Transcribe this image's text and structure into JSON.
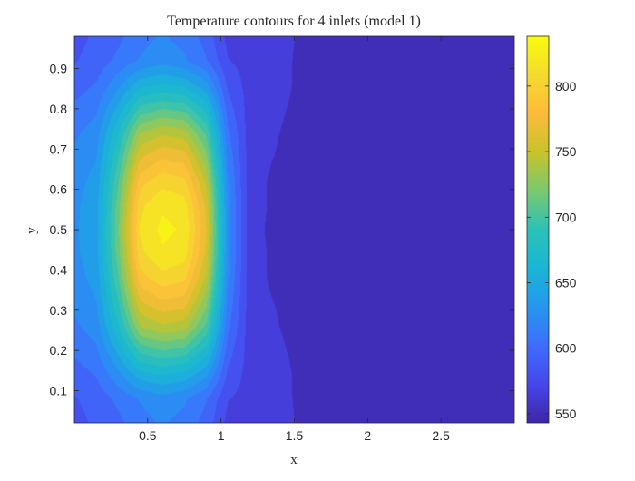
{
  "chart_data": {
    "type": "heatmap",
    "subtype": "filled-contour",
    "title": "Temperature contours for  4 inlets (model 1)",
    "xlabel": "x",
    "ylabel": "y",
    "xlim": [
      0.0,
      3.0
    ],
    "ylim": [
      0.02,
      0.98
    ],
    "x_ticks": [
      0.5,
      1,
      1.5,
      2,
      2.5
    ],
    "x_tick_labels": [
      "0.5",
      "1",
      "1.5",
      "2",
      "2.5"
    ],
    "y_ticks": [
      0.1,
      0.2,
      0.3,
      0.4,
      0.5,
      0.6,
      0.7,
      0.8,
      0.9
    ],
    "y_tick_labels": [
      "0.1",
      "0.2",
      "0.3",
      "0.4",
      "0.5",
      "0.6",
      "0.7",
      "0.8",
      "0.9"
    ],
    "colorbar": {
      "range": [
        543,
        838
      ],
      "ticks": [
        550,
        600,
        650,
        700,
        750,
        800
      ],
      "tick_labels": [
        "550",
        "600",
        "650",
        "700",
        "750",
        "800"
      ],
      "colormap": "parula"
    },
    "colormap_stops": [
      "#3e26a8",
      "#4746eb",
      "#3e6efd",
      "#2597f0",
      "#1ab5d5",
      "#2cc1b8",
      "#7ac971",
      "#c8c32a",
      "#fdbb3b",
      "#f5db2e",
      "#f9fb0e"
    ],
    "contour_levels": 20,
    "field": {
      "x": [
        0.0,
        0.15,
        0.3,
        0.45,
        0.6,
        0.75,
        0.9,
        1.05,
        1.2,
        1.35,
        1.5,
        1.65,
        1.8,
        1.95,
        2.1,
        2.25,
        2.4,
        2.55,
        2.7,
        2.85,
        3.0
      ],
      "y": [
        0.02,
        0.08,
        0.14,
        0.2,
        0.26,
        0.32,
        0.38,
        0.44,
        0.5,
        0.56,
        0.62,
        0.68,
        0.74,
        0.8,
        0.86,
        0.92,
        0.98
      ],
      "T": [
        [
          582,
          590,
          598,
          612,
          618,
          612,
          596,
          567,
          568,
          568,
          558,
          554,
          548,
          545,
          545,
          545,
          545,
          545,
          545,
          545,
          545
        ],
        [
          586,
          593,
          606,
          618,
          625,
          619,
          603,
          573,
          567,
          566,
          557,
          553,
          547,
          545,
          545,
          545,
          545,
          545,
          545,
          545,
          545
        ],
        [
          595,
          603,
          627,
          655,
          662,
          656,
          635,
          583,
          566,
          564,
          557,
          552,
          547,
          545,
          545,
          545,
          545,
          545,
          545,
          545,
          545
        ],
        [
          605,
          614,
          651,
          695,
          705,
          700,
          669,
          594,
          565,
          561,
          556,
          552,
          547,
          545,
          545,
          545,
          545,
          545,
          545,
          545,
          545
        ],
        [
          614,
          624,
          674,
          735,
          747,
          742,
          702,
          604,
          564,
          559,
          555,
          551,
          546,
          545,
          545,
          545,
          545,
          545,
          545,
          545,
          545
        ],
        [
          620,
          631,
          690,
          763,
          777,
          772,
          725,
          612,
          564,
          558,
          555,
          551,
          546,
          545,
          545,
          545,
          545,
          545,
          545,
          545,
          545
        ],
        [
          625,
          637,
          704,
          788,
          803,
          797,
          746,
          618,
          563,
          556,
          554,
          551,
          546,
          545,
          545,
          545,
          545,
          545,
          545,
          545,
          545
        ],
        [
          628,
          641,
          714,
          805,
          821,
          815,
          760,
          622,
          563,
          556,
          554,
          550,
          546,
          545,
          545,
          545,
          545,
          545,
          545,
          545,
          545
        ],
        [
          629,
          642,
          717,
          811,
          827,
          821,
          765,
          623,
          563,
          555,
          554,
          550,
          546,
          545,
          545,
          545,
          545,
          545,
          545,
          545,
          545
        ],
        [
          628,
          641,
          714,
          805,
          821,
          815,
          760,
          622,
          563,
          556,
          554,
          550,
          546,
          545,
          545,
          545,
          545,
          545,
          545,
          545,
          545
        ],
        [
          625,
          637,
          704,
          788,
          803,
          797,
          746,
          618,
          563,
          556,
          554,
          551,
          546,
          545,
          545,
          545,
          545,
          545,
          545,
          545,
          545
        ],
        [
          620,
          631,
          690,
          763,
          777,
          772,
          725,
          612,
          564,
          558,
          555,
          551,
          546,
          545,
          545,
          545,
          545,
          545,
          545,
          545,
          545
        ],
        [
          614,
          624,
          674,
          735,
          747,
          742,
          702,
          604,
          564,
          559,
          555,
          551,
          546,
          545,
          545,
          545,
          545,
          545,
          545,
          545,
          545
        ],
        [
          605,
          614,
          651,
          695,
          705,
          700,
          669,
          594,
          565,
          561,
          556,
          552,
          547,
          545,
          545,
          545,
          545,
          545,
          545,
          545,
          545
        ],
        [
          595,
          603,
          627,
          655,
          662,
          656,
          635,
          583,
          566,
          564,
          557,
          552,
          547,
          545,
          545,
          545,
          545,
          545,
          545,
          545,
          545
        ],
        [
          586,
          593,
          606,
          618,
          625,
          619,
          603,
          573,
          567,
          566,
          557,
          553,
          547,
          545,
          545,
          545,
          545,
          545,
          545,
          545,
          545
        ],
        [
          582,
          590,
          598,
          612,
          618,
          612,
          596,
          567,
          568,
          568,
          558,
          554,
          548,
          545,
          545,
          545,
          545,
          545,
          545,
          545,
          545
        ]
      ]
    }
  }
}
